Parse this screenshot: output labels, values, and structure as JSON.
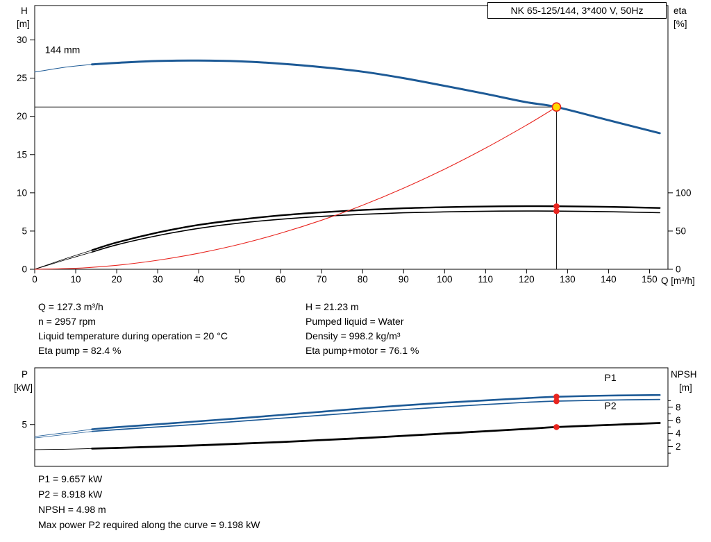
{
  "title_box": {
    "text": "NK 65-125/144, 3*400 V, 50Hz"
  },
  "middle_info": {
    "left": [
      "Q = 127.3 m³/h",
      "n = 2957 rpm",
      "Liquid temperature during operation = 20 °C",
      "Eta pump = 82.4 %"
    ],
    "right": [
      "H = 21.23 m",
      "Pumped liquid = Water",
      "Density = 998.2 kg/m³",
      "Eta pump+motor = 76.1 %"
    ]
  },
  "bottom_info": [
    "P1 = 9.657 kW",
    "P2 = 8.918 kW",
    "NPSH = 4.98 m",
    "Max power P2 required along the curve = 9.198 kW"
  ],
  "colors": {
    "curve_blue": "#1d5a96",
    "curve_red": "#e8251f",
    "dot_yellow": "#ffd800",
    "black": "#000000"
  },
  "chart_data": [
    {
      "id": "head_chart",
      "type": "line",
      "x_axis": {
        "label": "Q [m³/h]",
        "min": 0,
        "max": 154.5,
        "ticks": [
          0,
          10,
          20,
          30,
          40,
          50,
          60,
          70,
          80,
          90,
          100,
          110,
          120,
          130,
          140,
          150
        ]
      },
      "y_left": {
        "label": [
          "H",
          "[m]"
        ],
        "min": 0,
        "max": 34.5,
        "ticks": [
          0,
          5,
          10,
          15,
          20,
          25,
          30
        ]
      },
      "y_right": {
        "label": [
          "eta",
          "[%]"
        ],
        "min": 0,
        "max": 345,
        "ticks": [
          0,
          50,
          100
        ],
        "minor_ticks": []
      },
      "series": [
        {
          "name": "eta-pump-curve",
          "axis": "right",
          "color": "#000000",
          "width": 2.4,
          "thin_until": 14,
          "points": [
            [
              0,
              0
            ],
            [
              7,
              13
            ],
            [
              14,
              25
            ],
            [
              20,
              35
            ],
            [
              30,
              48
            ],
            [
              40,
              58
            ],
            [
              50,
              65
            ],
            [
              60,
              70.5
            ],
            [
              70,
              74.5
            ],
            [
              80,
              77.5
            ],
            [
              90,
              79.8
            ],
            [
              100,
              81.2
            ],
            [
              110,
              82.1
            ],
            [
              120,
              82.5
            ],
            [
              127.3,
              82.4
            ],
            [
              140,
              81.6
            ],
            [
              152.5,
              80.2
            ]
          ]
        },
        {
          "name": "eta-pump-motor-curve",
          "axis": "right",
          "color": "#000000",
          "width": 1.6,
          "thin_until": 14,
          "points": [
            [
              0,
              0
            ],
            [
              7,
              11.5
            ],
            [
              14,
              22.5
            ],
            [
              20,
              32
            ],
            [
              30,
              44
            ],
            [
              40,
              53.5
            ],
            [
              50,
              60.5
            ],
            [
              60,
              65.5
            ],
            [
              70,
              69.2
            ],
            [
              80,
              71.9
            ],
            [
              90,
              73.9
            ],
            [
              100,
              75.1
            ],
            [
              110,
              75.9
            ],
            [
              120,
              76.2
            ],
            [
              127.3,
              76.1
            ],
            [
              140,
              75.3
            ],
            [
              152.5,
              74.0
            ]
          ]
        },
        {
          "name": "system-curve",
          "axis": "left",
          "color": "#e8251f",
          "width": 1.1,
          "points": [
            [
              0,
              0
            ],
            [
              10,
              0.13
            ],
            [
              20,
              0.52
            ],
            [
              30,
              1.18
            ],
            [
              40,
              2.1
            ],
            [
              50,
              3.27
            ],
            [
              60,
              4.72
            ],
            [
              70,
              6.42
            ],
            [
              80,
              8.38
            ],
            [
              90,
              10.61
            ],
            [
              100,
              13.1
            ],
            [
              110,
              15.85
            ],
            [
              120,
              18.86
            ],
            [
              127.3,
              21.23
            ]
          ]
        },
        {
          "name": "pump-curve-144mm",
          "axis": "left",
          "color": "#1d5a96",
          "width": 3,
          "thin_until": 14,
          "points": [
            [
              0,
              25.8
            ],
            [
              7,
              26.4
            ],
            [
              14,
              26.8
            ],
            [
              20,
              27.0
            ],
            [
              30,
              27.25
            ],
            [
              40,
              27.3
            ],
            [
              50,
              27.2
            ],
            [
              60,
              26.9
            ],
            [
              70,
              26.45
            ],
            [
              80,
              25.85
            ],
            [
              90,
              25.0
            ],
            [
              100,
              24.0
            ],
            [
              110,
              22.95
            ],
            [
              120,
              21.85
            ],
            [
              127.3,
              21.23
            ],
            [
              140,
              19.5
            ],
            [
              152.5,
              17.8
            ]
          ]
        }
      ],
      "labels": [
        {
          "name": "impeller-size-label",
          "text": "144 mm",
          "q": 2.5,
          "v": 28.3,
          "axis": "left",
          "color": "#000000"
        }
      ],
      "markers": [
        {
          "name": "duty-point",
          "q": 127.3,
          "v": 21.23,
          "axis": "left",
          "style": "duty",
          "crosshair": true
        },
        {
          "name": "eta-pump-point",
          "q": 127.3,
          "v": 82.4,
          "axis": "right",
          "style": "red"
        },
        {
          "name": "eta-pump-motor-point",
          "q": 127.3,
          "v": 76.1,
          "axis": "right",
          "style": "red"
        }
      ]
    },
    {
      "id": "power_chart",
      "type": "line",
      "x_axis": {
        "label": "",
        "min": 0,
        "max": 154.5,
        "ticks": []
      },
      "y_left": {
        "label": [
          "P",
          "[kW]"
        ],
        "min": -2,
        "max": 14.5,
        "ticks": [
          5
        ]
      },
      "y_right": {
        "label": [
          "NPSH",
          "[m]"
        ],
        "min": -1,
        "max": 14,
        "ticks": [
          2,
          4,
          6,
          8
        ],
        "minor_ticks": [
          1,
          3,
          5,
          7,
          9
        ]
      },
      "series": [
        {
          "name": "npsh-curve",
          "axis": "right",
          "color": "#000000",
          "width": 2.8,
          "thin_until": 14,
          "points": [
            [
              0,
              1.55
            ],
            [
              7,
              1.6
            ],
            [
              14,
              1.7
            ],
            [
              20,
              1.8
            ],
            [
              30,
              2.0
            ],
            [
              40,
              2.2
            ],
            [
              50,
              2.45
            ],
            [
              60,
              2.7
            ],
            [
              70,
              3.0
            ],
            [
              80,
              3.3
            ],
            [
              90,
              3.65
            ],
            [
              100,
              4.0
            ],
            [
              110,
              4.35
            ],
            [
              120,
              4.7
            ],
            [
              127.3,
              4.98
            ],
            [
              140,
              5.3
            ],
            [
              152.5,
              5.6
            ]
          ]
        },
        {
          "name": "p2-curve",
          "axis": "left",
          "color": "#1d5a96",
          "width": 1.7,
          "thin_until": 14,
          "points": [
            [
              0,
              2.75
            ],
            [
              7,
              3.3
            ],
            [
              14,
              3.85
            ],
            [
              20,
              4.15
            ],
            [
              30,
              4.6
            ],
            [
              40,
              5.05
            ],
            [
              50,
              5.55
            ],
            [
              60,
              6.05
            ],
            [
              70,
              6.55
            ],
            [
              80,
              7.05
            ],
            [
              90,
              7.5
            ],
            [
              100,
              7.95
            ],
            [
              110,
              8.35
            ],
            [
              120,
              8.72
            ],
            [
              127.3,
              8.918
            ],
            [
              140,
              9.1
            ],
            [
              152.5,
              9.198
            ]
          ]
        },
        {
          "name": "p1-curve",
          "axis": "left",
          "color": "#1d5a96",
          "width": 2.6,
          "thin_until": 14,
          "points": [
            [
              0,
              3.0
            ],
            [
              7,
              3.6
            ],
            [
              14,
              4.2
            ],
            [
              20,
              4.55
            ],
            [
              30,
              5.05
            ],
            [
              40,
              5.55
            ],
            [
              50,
              6.05
            ],
            [
              60,
              6.6
            ],
            [
              70,
              7.15
            ],
            [
              80,
              7.7
            ],
            [
              90,
              8.2
            ],
            [
              100,
              8.65
            ],
            [
              110,
              9.05
            ],
            [
              120,
              9.42
            ],
            [
              127.3,
              9.657
            ],
            [
              140,
              9.85
            ],
            [
              152.5,
              9.95
            ]
          ]
        }
      ],
      "labels": [
        {
          "name": "p1-curve-label",
          "text": "P1",
          "q": 139,
          "v": 12.3,
          "axis": "left",
          "color": "#1d5a96"
        },
        {
          "name": "p2-curve-label",
          "text": "P2",
          "q": 139,
          "v": 7.6,
          "axis": "left",
          "color": "#1d5a96"
        }
      ],
      "markers": [
        {
          "name": "p1-point",
          "q": 127.3,
          "v": 9.657,
          "axis": "left",
          "style": "red"
        },
        {
          "name": "p2-point",
          "q": 127.3,
          "v": 8.918,
          "axis": "left",
          "style": "red"
        },
        {
          "name": "npsh-point",
          "q": 127.3,
          "v": 4.98,
          "axis": "right",
          "style": "red"
        }
      ]
    }
  ]
}
